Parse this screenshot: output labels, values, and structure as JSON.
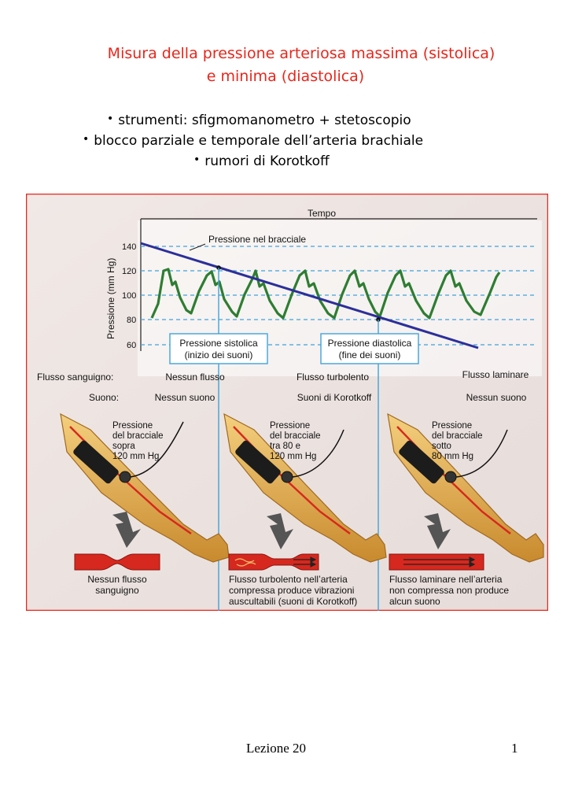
{
  "header": {
    "title_line1": "Misura della pressione arteriosa massima (sistolica)",
    "title_line2": "e minima (diastolica)",
    "bullets": [
      "strumenti: sfigmomanometro + stetoscopio",
      "blocco parziale e temporale dell’arteria brachiale",
      "rumori di Korotkoff"
    ]
  },
  "figure": {
    "time_label": "Tempo",
    "y_axis_label": "Pressione (mm Hg)",
    "y_ticks": [
      "140",
      "120",
      "100",
      "80",
      "60"
    ],
    "cuff_line_label": "Pressione nel bracciale",
    "systolic_box": [
      "Pressione sistolica",
      "(inizio dei suoni)"
    ],
    "diastolic_box": [
      "Pressione diastolica",
      "(fine dei suoni)"
    ],
    "flow_label": "Flusso sanguigno:",
    "sound_label": "Suono:",
    "columns": [
      {
        "flow": "Nessun flusso",
        "sound": "Nessun suono",
        "cuff": [
          "Pressione",
          "del bracciale",
          "sopra",
          "120 mm Hg"
        ],
        "caption": [
          "Nessun flusso",
          "sanguigno"
        ]
      },
      {
        "flow": "Flusso turbolento",
        "sound": "Suoni di Korotkoff",
        "cuff": [
          "Pressione",
          "del bracciale",
          "tra 80 e",
          "120 mm Hg"
        ],
        "caption": [
          "Flusso turbolento nell’arteria",
          "compressa produce vibrazioni",
          "auscultabili (suoni di Korotkoff)"
        ]
      },
      {
        "flow": "Flusso laminare",
        "sound": "Nessun suono",
        "cuff": [
          "Pressione",
          "del bracciale",
          "sotto",
          "80 mm Hg"
        ],
        "caption": [
          "Flusso laminare nell’arteria",
          "non compressa non produce",
          "alcun suono"
        ]
      }
    ],
    "colors": {
      "frame": "#e8261b",
      "cuff_line": "#2b2f9a",
      "pressure_wave": "#2e7d32",
      "guide_lines": "#3fa3d8",
      "arm": "#e9b25a",
      "artery": "#d6281e"
    }
  },
  "footer": {
    "lesson": "Lezione 20",
    "page": "1"
  }
}
